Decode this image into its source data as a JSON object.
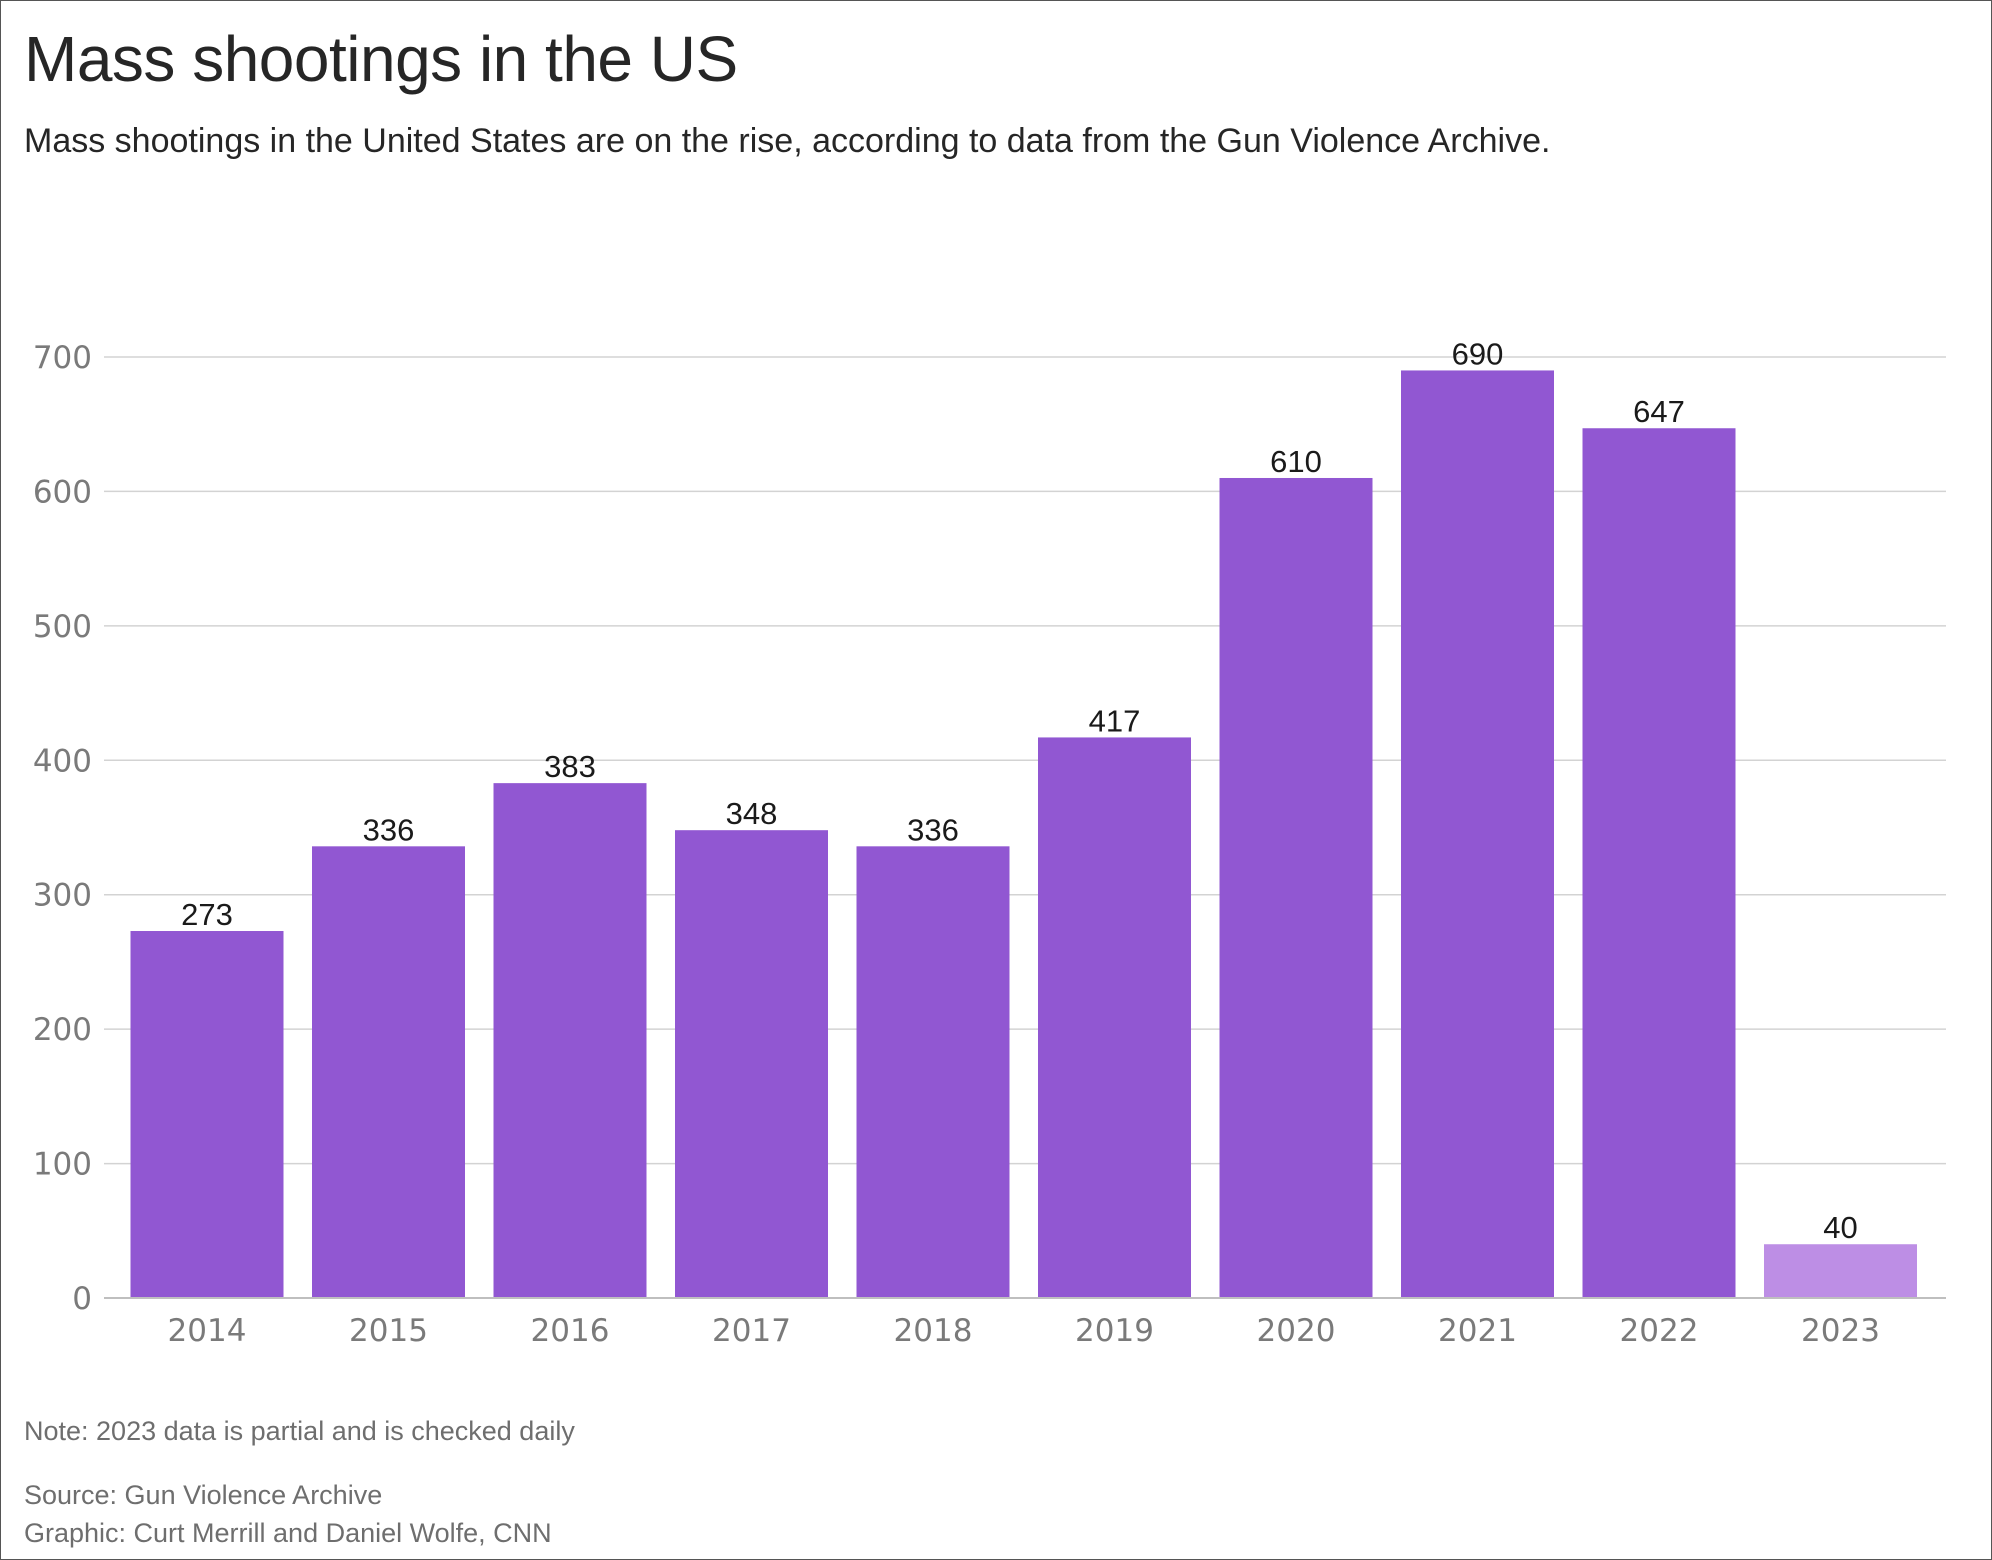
{
  "chart_data": {
    "type": "bar",
    "title": "Mass shootings in the US",
    "subtitle": "Mass shootings in the United States are on the rise, according to data from the Gun Violence Archive.",
    "categories": [
      "2014",
      "2015",
      "2016",
      "2017",
      "2018",
      "2019",
      "2020",
      "2021",
      "2022",
      "2023"
    ],
    "values": [
      273,
      336,
      383,
      348,
      336,
      417,
      610,
      690,
      647,
      40
    ],
    "data_labels": [
      "273",
      "336",
      "383",
      "348",
      "336",
      "417",
      "610",
      "690",
      "647",
      "40"
    ],
    "partial_category": "2023",
    "xlabel": "",
    "ylabel": "",
    "ylim": [
      0,
      700
    ],
    "yticks": [
      0,
      100,
      200,
      300,
      400,
      500,
      600,
      700
    ],
    "ytick_labels": [
      "0",
      "100",
      "200",
      "300",
      "400",
      "500",
      "600",
      "700"
    ],
    "grid": true,
    "colors": {
      "bar": "#9157d2",
      "bar_partial": "#bd8ee5",
      "grid": "#d3d3d3",
      "axis": "#bfbfbf",
      "tick_text": "#7a7a7a",
      "label_text": "#1a1a1a"
    },
    "note": "Note: 2023 data is partial and is checked daily",
    "source": "Source: Gun Violence Archive",
    "credit": "Graphic: Curt Merrill and Daniel Wolfe, CNN"
  }
}
